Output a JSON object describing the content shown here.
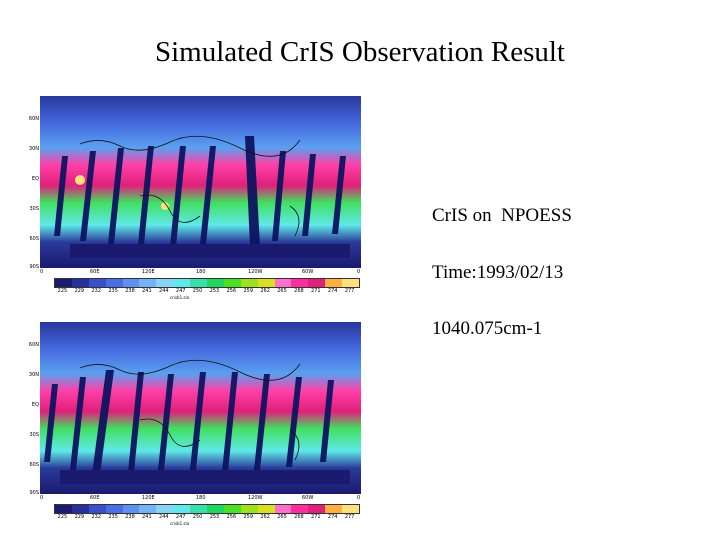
{
  "title": "Simulated CrIS Observation Result",
  "info": {
    "instrument": "CrIS on  NPOESS",
    "time": "Time:1993/02/13",
    "wavenumber": "1040.075cm-1"
  },
  "map": {
    "lat_labels": [
      "60N",
      "30N",
      "EQ",
      "30S",
      "60S",
      "90S"
    ],
    "lon_labels": [
      "0",
      "60E",
      "120E",
      "180",
      "120W",
      "60W",
      "0"
    ],
    "colorbar_values": [
      "225",
      "229",
      "232",
      "235",
      "238",
      "241",
      "244",
      "247",
      "250",
      "253",
      "256",
      "259",
      "262",
      "265",
      "268",
      "271",
      "274",
      "277"
    ],
    "colorbar_colors": [
      "#1a1a6e",
      "#27309a",
      "#3a4fc8",
      "#4a6ee6",
      "#5f91f2",
      "#74b4f6",
      "#88d4f8",
      "#5fe8e8",
      "#38e0a8",
      "#20d860",
      "#48e020",
      "#9ee020",
      "#d8e020",
      "#ff70c8",
      "#ff2e9c",
      "#e0207a",
      "#ffb040",
      "#ffe080"
    ],
    "colorbar_name_top": "crisb1.sla",
    "colorbar_name_bottom": "crisb1.sla"
  }
}
